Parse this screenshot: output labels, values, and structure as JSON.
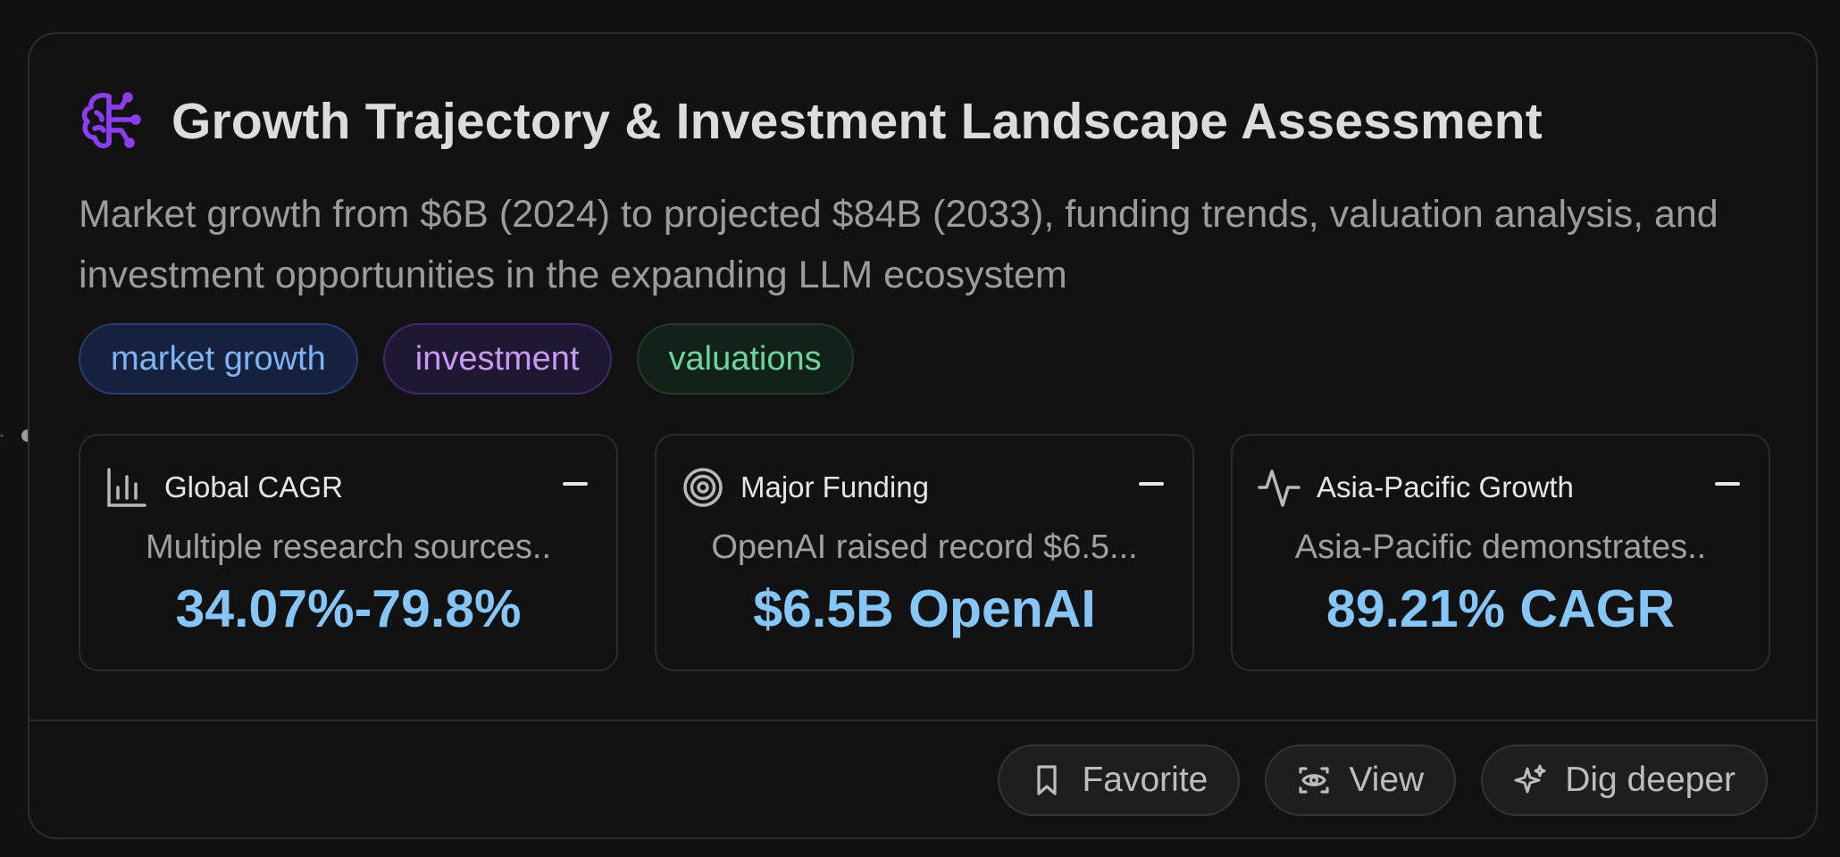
{
  "card": {
    "title": "Growth Trajectory & Investment Landscape Assessment",
    "description": "Market growth from $6B (2024) to projected $84B (2033), funding trends, valuation analysis, and investment opportunities in the expanding LLM ecosystem",
    "icon": "brain-icon",
    "accent_color": "#8b3ef0"
  },
  "tags": [
    {
      "label": "market growth",
      "color": "#7fb3f6"
    },
    {
      "label": "investment",
      "color": "#c79af5"
    },
    {
      "label": "valuations",
      "color": "#6fd3a0"
    }
  ],
  "metrics": [
    {
      "icon": "bar-chart-icon",
      "label": "Global CAGR",
      "description": "Multiple research sources..",
      "value": "34.07%-79.8%"
    },
    {
      "icon": "target-icon",
      "label": "Major Funding",
      "description": "OpenAI raised record $6.5...",
      "value": "$6.5B OpenAI"
    },
    {
      "icon": "activity-icon",
      "label": "Asia-Pacific Growth",
      "description": "Asia-Pacific demonstrates..",
      "value": "89.21% CAGR"
    }
  ],
  "actions": {
    "favorite": {
      "label": "Favorite",
      "icon": "bookmark-icon"
    },
    "view": {
      "label": "View",
      "icon": "eye-icon"
    },
    "dig_deeper": {
      "label": "Dig deeper",
      "icon": "sparkles-icon"
    }
  },
  "value_color": "#86c5f8"
}
